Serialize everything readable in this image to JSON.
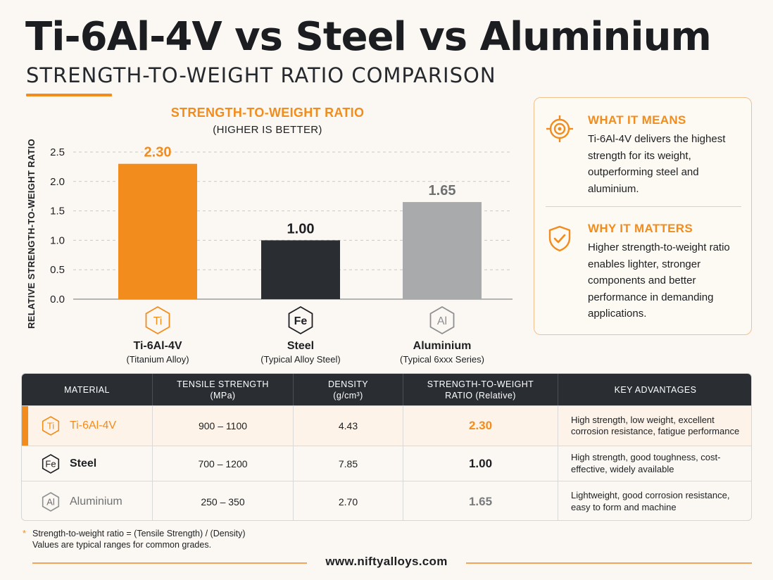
{
  "title": "Ti-6Al-4V vs Steel vs Aluminium",
  "subtitle": "STRENGTH-TO-WEIGHT RATIO COMPARISON",
  "colors": {
    "accent": "#f28c1c",
    "dark": "#2a2e33",
    "gray": "#a9aaab",
    "background": "#fbf8f3"
  },
  "chart_data": {
    "type": "bar",
    "title": "STRENGTH-TO-WEIGHT RATIO",
    "subtitle": "(HIGHER IS BETTER)",
    "ylabel": "RELATIVE STRENGTH-TO-WEIGHT RATIO",
    "ylim": [
      0,
      2.5
    ],
    "yticks": [
      "0.0",
      "0.5",
      "1.0",
      "1.5",
      "2.0",
      "2.5"
    ],
    "grid": true,
    "categories": [
      "Ti-6Al-4V",
      "Steel",
      "Aluminium"
    ],
    "category_sublabels": [
      "(Titanium Alloy)",
      "(Typical Alloy Steel)",
      "(Typical 6xxx Series)"
    ],
    "symbols": [
      "Ti",
      "Fe",
      "Al"
    ],
    "values": [
      2.3,
      1.0,
      1.65
    ],
    "value_labels": [
      "2.30",
      "1.00",
      "1.65"
    ],
    "bar_colors": [
      "#f28c1c",
      "#2a2e33",
      "#a9aaab"
    ]
  },
  "info": {
    "means": {
      "icon": "target-icon",
      "heading": "WHAT IT MEANS",
      "text": "Ti-6Al-4V delivers the highest strength for its weight, outperforming steel and aluminium."
    },
    "matters": {
      "icon": "shield-check-icon",
      "heading": "WHY IT MATTERS",
      "text": "Higher strength-to-weight ratio enables lighter, stronger components and better performance in demanding applications."
    }
  },
  "table": {
    "headers": [
      "MATERIAL",
      "TENSILE STRENGTH\n(MPa)",
      "DENSITY\n(g/cm³)",
      "STRENGTH-TO-WEIGHT\nRATIO (Relative)",
      "KEY ADVANTAGES"
    ],
    "rows": [
      {
        "symbol": "Ti",
        "material": "Ti-6Al-4V",
        "tensile": "900 – 1100",
        "density": "4.43",
        "ratio": "2.30",
        "advantages": "High strength, low weight, excellent corrosion resistance, fatigue performance"
      },
      {
        "symbol": "Fe",
        "material": "Steel",
        "tensile": "700 – 1200",
        "density": "7.85",
        "ratio": "1.00",
        "advantages": "High strength, good toughness, cost-effective, widely available"
      },
      {
        "symbol": "Al",
        "material": "Aluminium",
        "tensile": "250 – 350",
        "density": "2.70",
        "ratio": "1.65",
        "advantages": "Lightweight, good corrosion resistance, easy to form and machine"
      }
    ]
  },
  "footnote": {
    "star": "*",
    "line1": "Strength-to-weight ratio = (Tensile Strength) / (Density)",
    "line2": "Values are typical ranges for common grades."
  },
  "website": "www.niftyalloys.com"
}
